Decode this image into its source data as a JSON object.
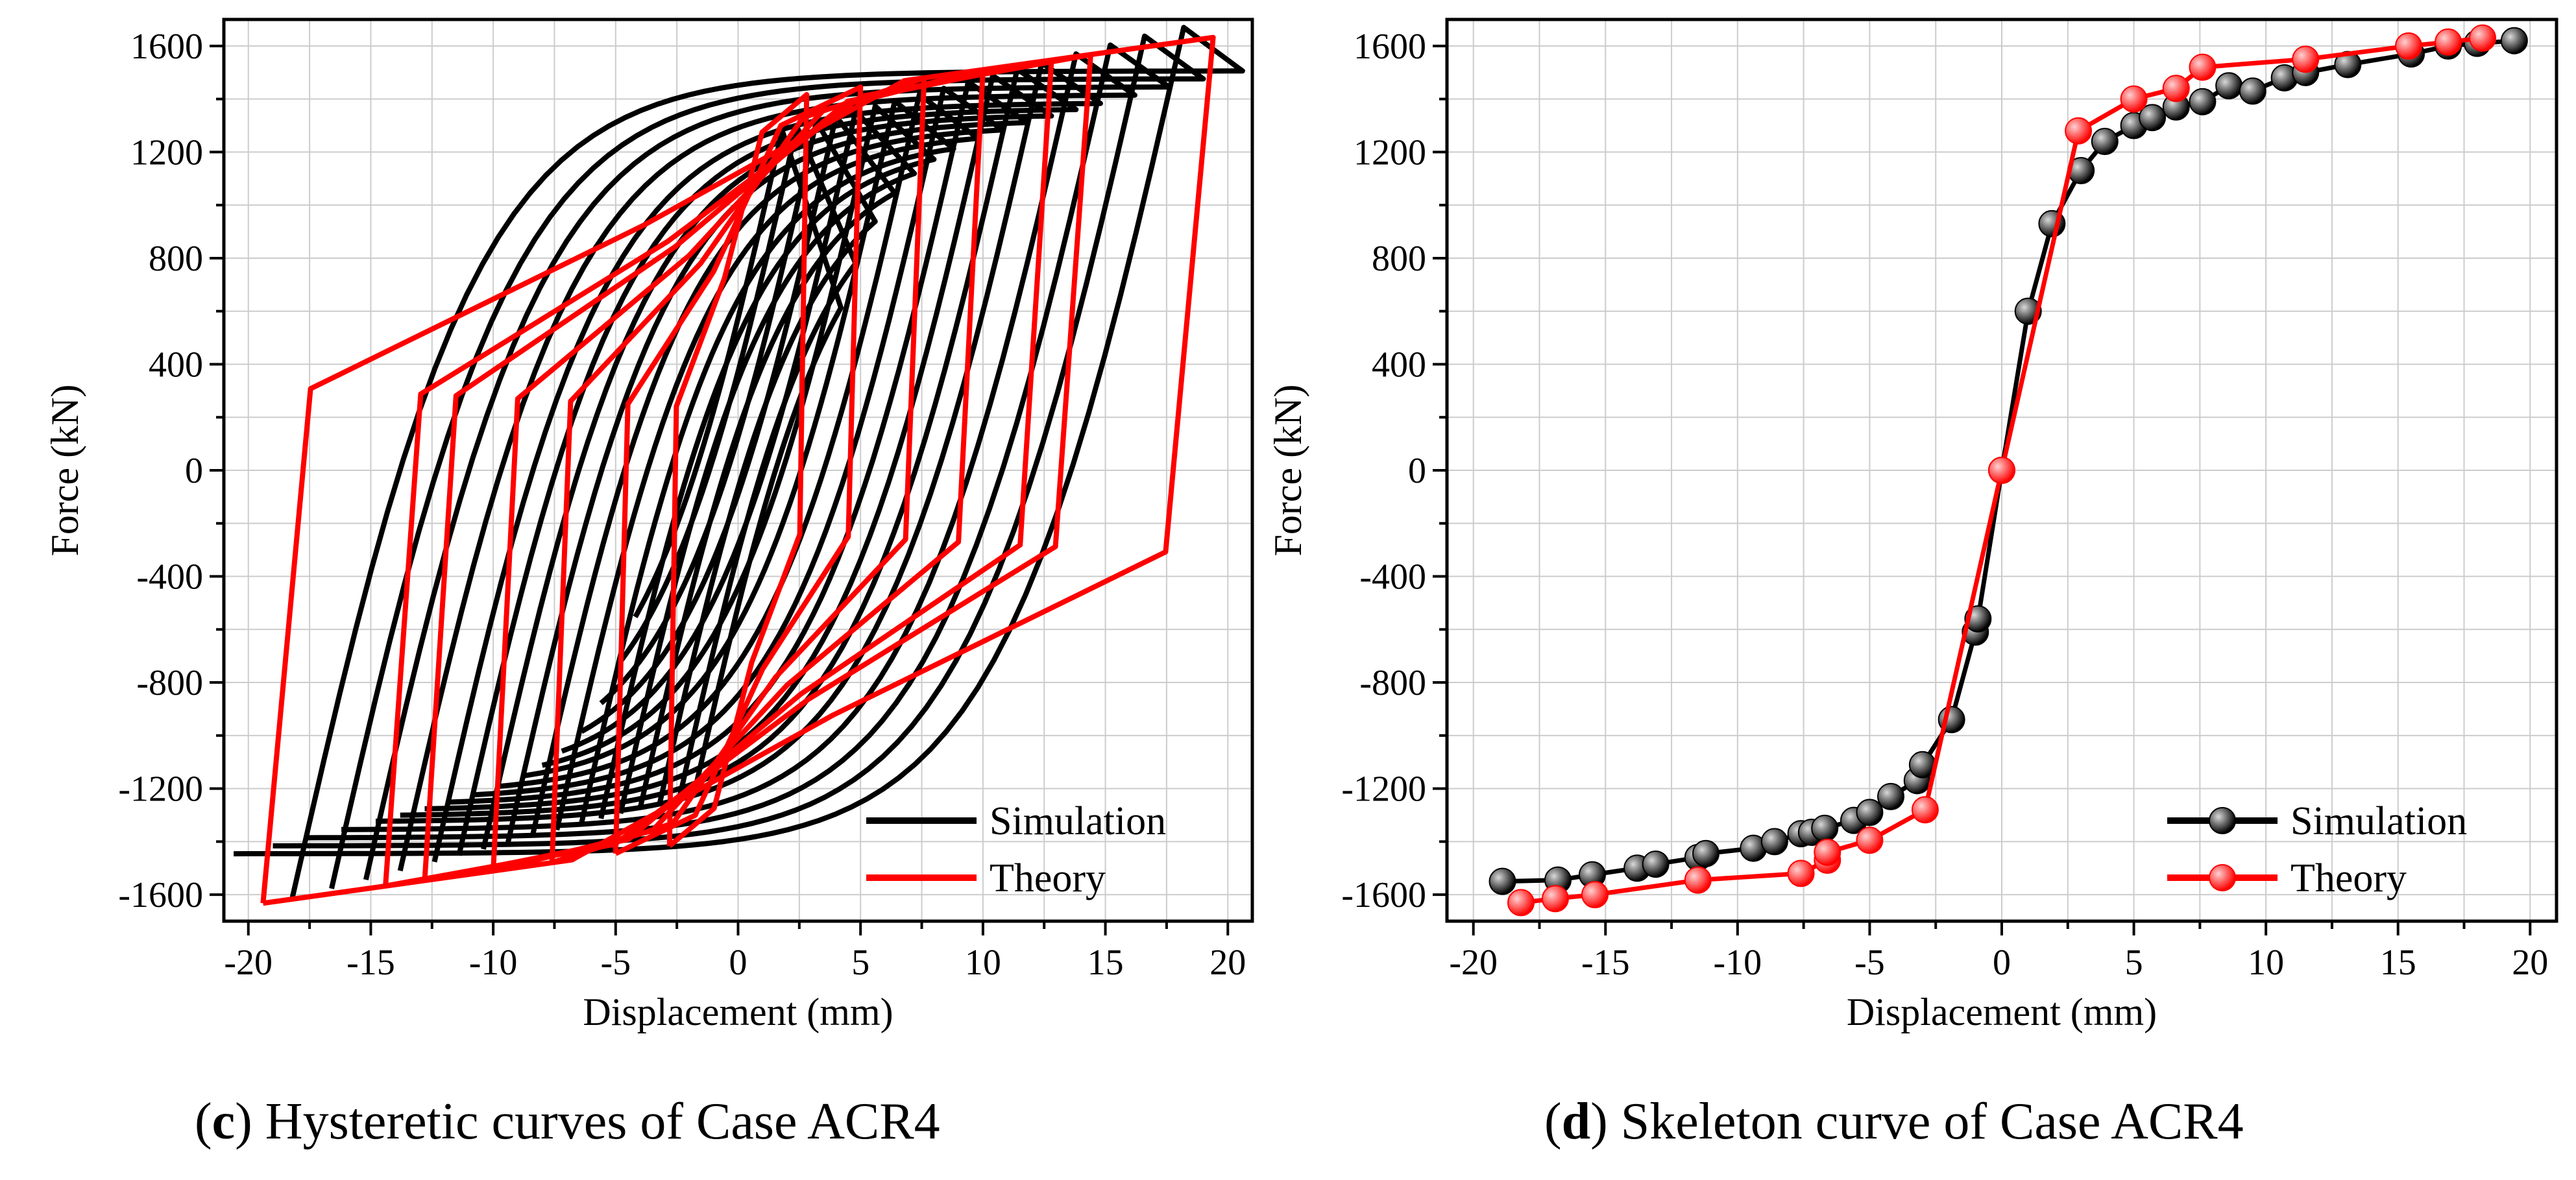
{
  "colors": {
    "simulation": "#000000",
    "theory": "#ff0000",
    "grid": "#cccccc",
    "axis": "#000000"
  },
  "chart_data": [
    {
      "id": "c",
      "type": "line",
      "title": "",
      "caption": {
        "letter": "c",
        "pre": "(",
        "post": ") Hysteretic curves of Case ACR4"
      },
      "xlabel": "Displacement (mm)",
      "ylabel": "Force (kN)",
      "xlim": [
        -21,
        21
      ],
      "ylim": [
        -1700,
        1700
      ],
      "xticks": [
        -20,
        -15,
        -10,
        -5,
        0,
        5,
        10,
        15,
        20
      ],
      "yticks": [
        -1600,
        -1200,
        -800,
        -400,
        0,
        400,
        800,
        1200,
        1600
      ],
      "grid": true,
      "legend": {
        "position": "bottom-right",
        "entries": [
          "Simulation",
          "Theory"
        ]
      },
      "series": [
        {
          "name": "Simulation",
          "kind": "hysteresis-curves",
          "amplitudes": [
            3,
            3.6,
            4.4,
            5.2,
            6,
            6.8,
            7.6,
            8.6,
            9.6,
            10.6,
            11.6,
            12.6,
            13.6,
            15,
            16.4,
            17.8,
            19.4
          ],
          "peak_force": 1640,
          "yield_force": 1180,
          "initial_stiffness": 470,
          "x_shift": 1.2,
          "y_shift": 30
        },
        {
          "name": "Theory",
          "kind": "hysteresis-polygons",
          "amplitudes": [
            2.8,
            5,
            7.6,
            10,
            12.8,
            14.4,
            19.4
          ],
          "peak_force": 1640,
          "cap_force": 1380,
          "yield_force": 1250
        }
      ]
    },
    {
      "id": "d",
      "type": "line",
      "title": "",
      "caption": {
        "letter": "d",
        "pre": "(",
        "post": ") Skeleton curve of Case ACR4"
      },
      "xlabel": "Displacement (mm)",
      "ylabel": "Force (kN)",
      "xlim": [
        -21,
        21
      ],
      "ylim": [
        -1700,
        1700
      ],
      "xticks": [
        -20,
        -15,
        -10,
        -5,
        0,
        5,
        10,
        15,
        20
      ],
      "yticks": [
        -1600,
        -1200,
        -800,
        -400,
        0,
        400,
        800,
        1200,
        1600
      ],
      "grid": true,
      "legend": {
        "position": "bottom-right",
        "entries": [
          "Simulation",
          "Theory"
        ]
      },
      "series": [
        {
          "name": "Simulation",
          "x": [
            -18.9,
            -16.8,
            -15.5,
            -13.8,
            -13.1,
            -11.5,
            -11.2,
            -9.4,
            -8.6,
            -7.6,
            -7.2,
            -6.7,
            -5.6,
            -5.0,
            -4.2,
            -3.2,
            -3.0,
            -1.9,
            -1.0,
            -0.9,
            0,
            1.0,
            1.9,
            3.0,
            3.9,
            5.0,
            5.7,
            6.6,
            7.6,
            8.6,
            9.5,
            10.7,
            11.5,
            13.1,
            15.5,
            16.9,
            18.0,
            19.4
          ],
          "y": [
            -1550,
            -1545,
            -1525,
            -1500,
            -1485,
            -1460,
            -1445,
            -1425,
            -1400,
            -1370,
            -1365,
            -1350,
            -1320,
            -1290,
            -1230,
            -1170,
            -1110,
            -940,
            -610,
            -560,
            0,
            600,
            930,
            1130,
            1240,
            1300,
            1330,
            1370,
            1390,
            1450,
            1430,
            1480,
            1500,
            1530,
            1570,
            1600,
            1610,
            1620
          ]
        },
        {
          "name": "Theory",
          "x": [
            -18.2,
            -16.9,
            -15.4,
            -11.5,
            -7.6,
            -6.6,
            -6.6,
            -5.0,
            -2.9,
            0,
            2.9,
            5.0,
            6.6,
            7.6,
            11.5,
            15.4,
            16.9,
            18.2
          ],
          "y": [
            -1630,
            -1615,
            -1600,
            -1545,
            -1520,
            -1470,
            -1440,
            -1395,
            -1280,
            0,
            1280,
            1400,
            1440,
            1520,
            1550,
            1600,
            1615,
            1630
          ]
        }
      ]
    }
  ]
}
